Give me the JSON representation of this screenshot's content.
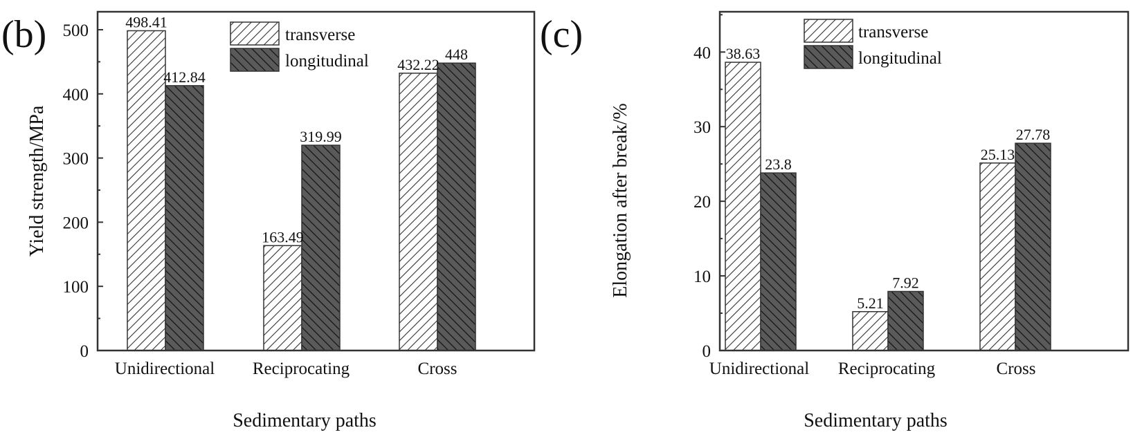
{
  "colors": {
    "frame": "#333333",
    "transverse_fill": "#ffffff",
    "transverse_hatch": "#333333",
    "longitudinal_fill": "#5a5a5a",
    "longitudinal_hatch": "#111111"
  },
  "chart_data": [
    {
      "type": "bar",
      "panel_label": "(b)",
      "title": "",
      "xlabel": "Sedimentary paths",
      "ylabel": "Yield strength/MPa",
      "categories": [
        "Unidirectional",
        "Reciprocating",
        "Cross"
      ],
      "series": [
        {
          "name": "transverse",
          "pattern": "hatch-forward",
          "values": [
            498.41,
            163.49,
            432.22
          ],
          "labels": [
            "498.41",
            "163.49",
            "432.22"
          ]
        },
        {
          "name": "longitudinal",
          "pattern": "hatch-back-dark",
          "values": [
            412.84,
            319.99,
            448
          ],
          "labels": [
            "412.84",
            "319.99",
            "448"
          ]
        }
      ],
      "ylim": [
        0,
        528
      ],
      "yticks": [
        0,
        100,
        200,
        300,
        400,
        500
      ],
      "yticks_labels": [
        "0",
        "100",
        "200",
        "300",
        "400",
        "500"
      ],
      "minor_ytick_step": 50,
      "grid": false,
      "legend_position": "top-center"
    },
    {
      "type": "bar",
      "panel_label": "(c)",
      "title": "",
      "xlabel": "Sedimentary paths",
      "ylabel": "Elongation after break/%",
      "categories": [
        "Unidirectional",
        "Reciprocating",
        "Cross"
      ],
      "series": [
        {
          "name": "transverse",
          "pattern": "hatch-forward",
          "values": [
            38.63,
            5.21,
            25.13
          ],
          "labels": [
            "38.63",
            "5.21",
            "25.13"
          ]
        },
        {
          "name": "longitudinal",
          "pattern": "hatch-back-dark",
          "values": [
            23.8,
            7.92,
            27.78
          ],
          "labels": [
            "23.8",
            "7.92",
            "27.78"
          ]
        }
      ],
      "ylim": [
        0,
        45.4
      ],
      "yticks": [
        0,
        10,
        20,
        30,
        40
      ],
      "yticks_labels": [
        "0",
        "10",
        "20",
        "30",
        "40"
      ],
      "minor_ytick_step": 5,
      "grid": false,
      "legend_position": "top-center"
    }
  ]
}
